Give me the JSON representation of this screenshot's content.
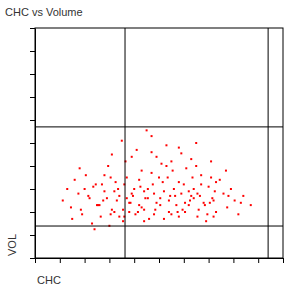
{
  "chart_data": {
    "type": "scatter",
    "title": "CHC vs Volume",
    "x_label": "CHC",
    "y_label": "VOL",
    "color": "#ff0000",
    "marker": "square",
    "tick_labels": false,
    "grid": false,
    "xlim": [
      0,
      1000
    ],
    "ylim": [
      0,
      1000
    ],
    "xticks": [
      0,
      100,
      200,
      300,
      400,
      500,
      600,
      700,
      800,
      900,
      1000
    ],
    "yticks": [
      0,
      100,
      200,
      300,
      400,
      500,
      600,
      700,
      800,
      900,
      1000
    ],
    "vlines": [
      363,
      940
    ],
    "hlines": [
      570,
      139
    ],
    "x": [
      112,
      130,
      145,
      160,
      175,
      190,
      205,
      220,
      235,
      250,
      265,
      280,
      295,
      310,
      325,
      340,
      355,
      370,
      385,
      400,
      415,
      430,
      445,
      460,
      475,
      490,
      505,
      520,
      535,
      550,
      565,
      580,
      595,
      610,
      625,
      640,
      655,
      670,
      685,
      700,
      715,
      730,
      745,
      760,
      775,
      790,
      805,
      820,
      840,
      870,
      150,
      185,
      215,
      245,
      275,
      305,
      335,
      365,
      395,
      425,
      455,
      485,
      515,
      545,
      575,
      605,
      635,
      665,
      695,
      725,
      180,
      230,
      280,
      330,
      380,
      430,
      480,
      530,
      580,
      630,
      680,
      730,
      780,
      830,
      300,
      360,
      420,
      480,
      540,
      600,
      660,
      720,
      200,
      260,
      320,
      380,
      440,
      500,
      560,
      620,
      350,
      410,
      470,
      530,
      590,
      650,
      710,
      770,
      450,
      510,
      240,
      290,
      340,
      390,
      440,
      490,
      540,
      590,
      640,
      690,
      270,
      320,
      370,
      420,
      470,
      520,
      570,
      620,
      670,
      720,
      255,
      305,
      355,
      405,
      455,
      505,
      555,
      605,
      655,
      705,
      390,
      470,
      550,
      630,
      710,
      310,
      580,
      650,
      440,
      360
    ],
    "values": [
      250,
      300,
      220,
      340,
      280,
      190,
      360,
      260,
      310,
      230,
      180,
      290,
      400,
      210,
      330,
      270,
      160,
      350,
      240,
      300,
      200,
      380,
      260,
      170,
      320,
      440,
      230,
      290,
      350,
      190,
      270,
      330,
      210,
      390,
      250,
      300,
      180,
      360,
      230,
      310,
      260,
      200,
      340,
      280,
      220,
      300,
      250,
      190,
      270,
      230,
      170,
      210,
      270,
      320,
      250,
      190,
      300,
      420,
      270,
      310,
      260,
      210,
      330,
      270,
      200,
      240,
      350,
      270,
      190,
      290,
      390,
      150,
      360,
      250,
      200,
      220,
      280,
      400,
      180,
      270,
      240,
      330,
      270,
      240,
      140,
      320,
      340,
      190,
      250,
      320,
      210,
      250,
      300,
      230,
      290,
      240,
      290,
      350,
      300,
      230,
      510,
      470,
      530,
      490,
      455,
      500,
      420,
      380,
      555,
      410,
      125,
      260,
      180,
      280,
      160,
      240,
      200,
      280,
      260,
      160,
      320,
      200,
      260,
      230,
      370,
      170,
      230,
      290,
      320,
      180,
      230,
      350,
      210,
      190,
      300,
      260,
      380,
      200,
      280,
      240,
      440,
      460,
      420,
      430,
      350,
      450,
      480,
      400,
      210,
      180
    ]
  }
}
